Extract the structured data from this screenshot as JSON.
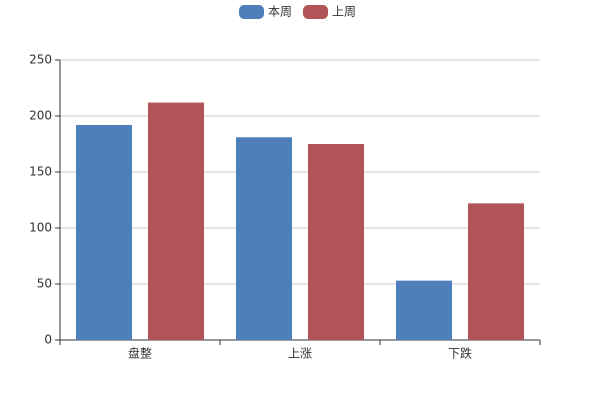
{
  "chart_data": {
    "type": "bar",
    "categories": [
      "盘整",
      "上涨",
      "下跌"
    ],
    "series": [
      {
        "name": "本周",
        "color": "#4e7fba",
        "values": [
          192,
          181,
          53
        ]
      },
      {
        "name": "上周",
        "color": "#b05457",
        "values": [
          212,
          175,
          122
        ]
      }
    ],
    "ylim": [
      0,
      250
    ],
    "yticks": [
      0,
      50,
      100,
      150,
      200,
      250
    ],
    "grid": true,
    "legend": "top"
  }
}
